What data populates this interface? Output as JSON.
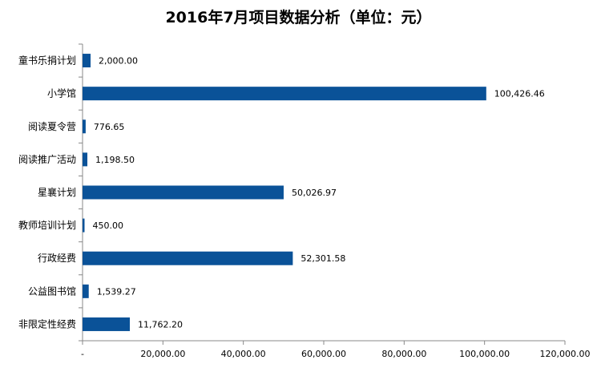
{
  "chart_data": {
    "type": "bar",
    "orientation": "horizontal",
    "title": "2016年7月项目数据分析（单位：元）",
    "categories": [
      "童书乐捐计划",
      "小学馆",
      "阅读夏令营",
      "阅读推广活动",
      "星襄计划",
      "教师培训计划",
      "行政经费",
      "公益图书馆",
      "非限定性经费"
    ],
    "values": [
      2000.0,
      100426.46,
      776.65,
      1198.5,
      50026.97,
      450.0,
      52301.58,
      1539.27,
      11762.2
    ],
    "data_labels": [
      "2,000.00",
      "100,426.46",
      "776.65",
      "1,198.50",
      "50,026.97",
      "450.00",
      "52,301.58",
      "1,539.27",
      "11,762.20"
    ],
    "xlim": [
      0,
      120000
    ],
    "x_ticks": [
      0,
      20000,
      40000,
      60000,
      80000,
      100000,
      120000
    ],
    "x_tick_labels": [
      "-",
      "20,000.00",
      "40,000.00",
      "60,000.00",
      "80,000.00",
      "100,000.00",
      "120,000.00"
    ],
    "grid": false,
    "legend": "none",
    "bar_color": "#0A5298",
    "axis_color": "#888888"
  }
}
